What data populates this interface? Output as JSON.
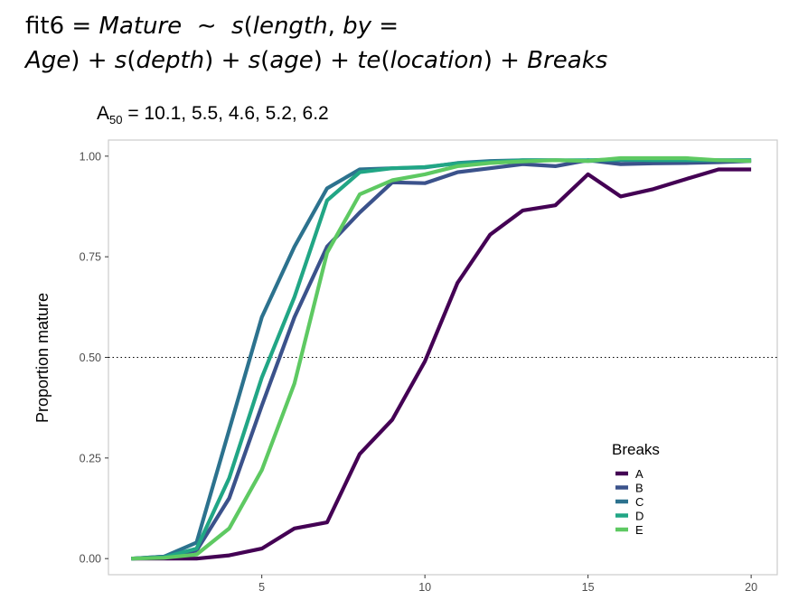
{
  "title": {
    "line1": [
      "fit6",
      " = ",
      "Mature",
      "  ∼  ",
      "s",
      "(",
      "length",
      ", ",
      "by",
      " ="
    ],
    "line2": [
      "Age",
      ") + ",
      "s",
      "(",
      "depth",
      ") + ",
      "s",
      "(",
      "age",
      ") + ",
      "te",
      "(",
      "location",
      ") + ",
      "Breaks"
    ]
  },
  "subtitle": {
    "prefix": "A",
    "sub": "50",
    "text": " = 10.1, 5.5, 4.6, 5.2, 6.2"
  },
  "chart_data": {
    "type": "line",
    "title": "fit6 = Mature ∼ s(length, by = Age) + s(depth) + s(age) + te(location) + Breaks",
    "subtitle": "A50 = 10.1, 5.5, 4.6, 5.2, 6.2",
    "xlabel": "",
    "ylabel": "Proportion mature",
    "xlim": [
      0.3,
      20.8
    ],
    "ylim": [
      -0.04,
      1.04
    ],
    "x_ticks": [
      5,
      10,
      15,
      20
    ],
    "y_ticks": [
      0.0,
      0.25,
      0.5,
      0.75,
      1.0
    ],
    "y_tick_labels": [
      "0.00",
      "0.25",
      "0.50",
      "0.75",
      "1.00"
    ],
    "hline": {
      "y": 0.5,
      "style": "dotted"
    },
    "grid": false,
    "legend": {
      "title": "Breaks",
      "position": "bottom-right"
    },
    "x": [
      1,
      2,
      3,
      4,
      5,
      6,
      7,
      8,
      9,
      10,
      11,
      12,
      13,
      14,
      15,
      16,
      17,
      18,
      19,
      20
    ],
    "series": [
      {
        "name": "A",
        "color": "#440154",
        "values": [
          0.0,
          0.0,
          0.0,
          0.008,
          0.025,
          0.075,
          0.09,
          0.26,
          0.345,
          0.49,
          0.685,
          0.805,
          0.865,
          0.878,
          0.955,
          0.9,
          0.918,
          0.943,
          0.967,
          0.967
        ]
      },
      {
        "name": "B",
        "color": "#3b528b",
        "values": [
          0.0,
          0.005,
          0.02,
          0.15,
          0.38,
          0.6,
          0.775,
          0.86,
          0.935,
          0.933,
          0.96,
          0.97,
          0.98,
          0.975,
          0.99,
          0.98,
          0.982,
          0.983,
          0.985,
          0.988
        ]
      },
      {
        "name": "C",
        "color": "#2c728e",
        "values": [
          0.0,
          0.005,
          0.04,
          0.32,
          0.6,
          0.775,
          0.92,
          0.967,
          0.97,
          0.972,
          0.983,
          0.988,
          0.99,
          0.99,
          0.988,
          0.99,
          0.99,
          0.99,
          0.99,
          0.99
        ]
      },
      {
        "name": "D",
        "color": "#21a685",
        "values": [
          0.0,
          0.003,
          0.025,
          0.2,
          0.45,
          0.65,
          0.89,
          0.96,
          0.97,
          0.973,
          0.982,
          0.985,
          0.99,
          0.99,
          0.99,
          0.992,
          0.99,
          0.99,
          0.99,
          0.99
        ]
      },
      {
        "name": "E",
        "color": "#5ec962",
        "values": [
          0.0,
          0.002,
          0.01,
          0.075,
          0.22,
          0.435,
          0.76,
          0.905,
          0.94,
          0.955,
          0.975,
          0.983,
          0.987,
          0.99,
          0.988,
          0.995,
          0.995,
          0.995,
          0.99,
          0.988
        ]
      }
    ]
  }
}
